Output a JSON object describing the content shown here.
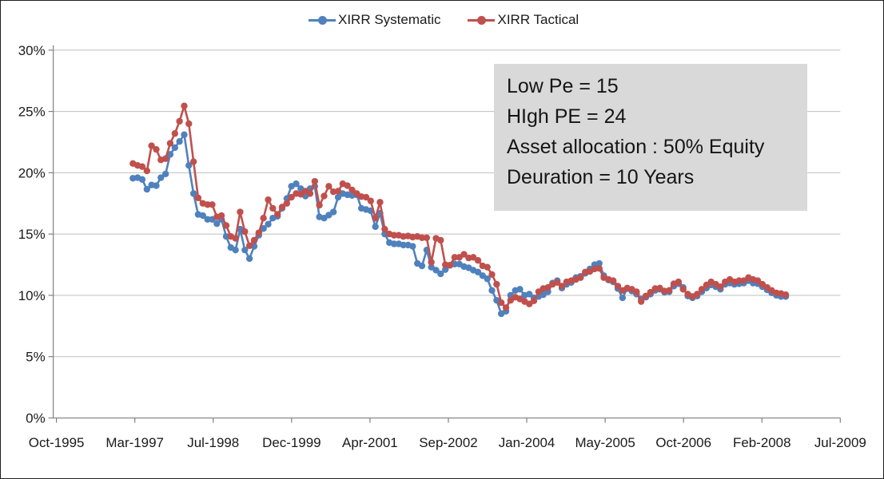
{
  "annotation": {
    "lines": [
      "Low Pe = 15",
      "HIgh PE = 24",
      "Asset allocation : 50% Equity",
      "Deuration = 10 Years"
    ],
    "background": "#D9D9D9"
  },
  "colors": {
    "systematic": "#4F81BD",
    "tactical": "#C0504D",
    "gridline": "#BFBFBF",
    "axis": "#808080",
    "text": "#1a1a1a"
  },
  "chart_data": {
    "type": "line",
    "title": "",
    "xlabel": "",
    "ylabel": "",
    "x_start": "Mar-1997",
    "x_interval": "monthly",
    "x_axis_tick_labels": [
      "Oct-1995",
      "Mar-1997",
      "Jul-1998",
      "Dec-1999",
      "Apr-2001",
      "Sep-2002",
      "Jan-2004",
      "May-2005",
      "Oct-2006",
      "Feb-2008",
      "Jul-2009"
    ],
    "ylim": [
      0,
      30
    ],
    "y_tick_step": 5,
    "y_tick_format": "percent",
    "grid": "horizontal",
    "legend_position": "top-center",
    "series": [
      {
        "name": "XIRR Systematic",
        "color": "#4F81BD",
        "values": [
          19.55,
          19.6,
          19.45,
          18.65,
          19.0,
          18.95,
          19.6,
          19.9,
          21.5,
          22.05,
          22.55,
          23.1,
          20.6,
          18.3,
          16.6,
          16.5,
          16.2,
          16.2,
          15.85,
          16.2,
          14.8,
          13.9,
          13.7,
          15.4,
          13.7,
          13.0,
          14.0,
          14.9,
          15.45,
          15.8,
          16.3,
          16.45,
          17.1,
          17.9,
          18.9,
          19.1,
          18.7,
          18.1,
          18.7,
          18.9,
          16.4,
          16.3,
          16.55,
          16.8,
          18.0,
          18.3,
          18.2,
          18.15,
          18.2,
          17.1,
          17.0,
          16.9,
          15.6,
          16.7,
          15.0,
          14.3,
          14.2,
          14.2,
          14.1,
          14.1,
          14.0,
          12.6,
          12.4,
          13.7,
          12.3,
          12.05,
          11.75,
          12.1,
          12.45,
          12.55,
          12.55,
          12.35,
          12.25,
          12.05,
          11.9,
          11.6,
          11.35,
          10.4,
          9.6,
          8.5,
          8.7,
          10.0,
          10.4,
          10.5,
          10.0,
          10.1,
          9.8,
          9.9,
          10.05,
          10.3,
          11.0,
          11.2,
          10.6,
          10.9,
          11.05,
          11.45,
          11.55,
          11.8,
          12.15,
          12.5,
          12.6,
          11.6,
          11.25,
          11.1,
          10.55,
          9.8,
          10.55,
          10.35,
          10.1,
          9.7,
          9.85,
          10.1,
          10.4,
          10.5,
          10.25,
          10.3,
          10.75,
          10.95,
          10.65,
          9.95,
          9.8,
          9.95,
          10.3,
          10.6,
          10.85,
          10.7,
          10.5,
          10.9,
          11.0,
          10.9,
          10.95,
          11.0,
          11.2,
          11.0,
          10.95,
          10.7,
          10.45,
          10.2,
          10.0,
          9.9,
          9.9
        ]
      },
      {
        "name": "XIRR Tactical",
        "color": "#C0504D",
        "values": [
          20.75,
          20.6,
          20.5,
          20.15,
          22.2,
          21.9,
          21.05,
          21.15,
          22.4,
          23.2,
          24.2,
          25.45,
          24.0,
          20.9,
          17.95,
          17.5,
          17.4,
          17.4,
          16.4,
          16.5,
          15.7,
          14.8,
          14.65,
          16.8,
          15.2,
          14.05,
          14.5,
          15.1,
          16.3,
          17.8,
          17.1,
          16.6,
          17.2,
          17.5,
          18.0,
          18.3,
          18.25,
          18.5,
          18.3,
          19.3,
          17.35,
          18.1,
          18.9,
          18.45,
          18.5,
          19.1,
          18.95,
          18.6,
          18.3,
          18.05,
          18.0,
          17.7,
          16.3,
          17.6,
          15.4,
          15.0,
          14.9,
          14.9,
          14.8,
          14.85,
          14.75,
          14.8,
          14.7,
          14.7,
          12.7,
          14.65,
          14.5,
          12.5,
          12.45,
          13.1,
          13.1,
          13.35,
          13.05,
          13.1,
          12.85,
          12.4,
          12.3,
          11.7,
          10.9,
          9.4,
          9.0,
          9.6,
          9.85,
          9.7,
          9.5,
          9.3,
          9.55,
          10.3,
          10.55,
          10.65,
          10.9,
          11.05,
          10.75,
          11.1,
          11.2,
          11.3,
          11.45,
          11.9,
          11.95,
          12.15,
          12.2,
          11.45,
          11.3,
          11.2,
          10.75,
          10.4,
          10.6,
          10.5,
          10.3,
          9.5,
          9.95,
          10.25,
          10.55,
          10.6,
          10.35,
          10.4,
          10.95,
          11.1,
          10.5,
          10.1,
          9.9,
          10.1,
          10.5,
          10.85,
          11.1,
          10.9,
          10.7,
          11.1,
          11.3,
          11.1,
          11.2,
          11.2,
          11.45,
          11.3,
          11.2,
          10.9,
          10.65,
          10.4,
          10.2,
          10.15,
          10.05
        ]
      }
    ]
  }
}
